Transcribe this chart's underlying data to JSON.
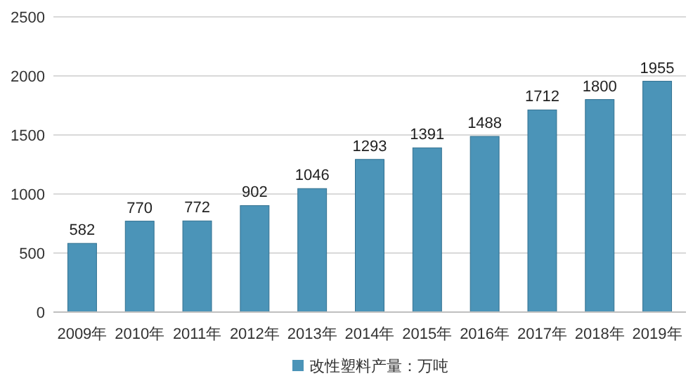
{
  "chart_data": {
    "type": "bar",
    "categories": [
      "2009年",
      "2010年",
      "2011年",
      "2012年",
      "2013年",
      "2014年",
      "2015年",
      "2016年",
      "2017年",
      "2018年",
      "2019年"
    ],
    "series": [
      {
        "name": "改性塑料产量：万吨",
        "color": "#4b94b8",
        "values": [
          582,
          770,
          772,
          902,
          1046,
          1293,
          1391,
          1488,
          1712,
          1800,
          1955
        ]
      }
    ],
    "ylim": [
      0,
      2500
    ],
    "yticks": [
      0,
      500,
      1000,
      1500,
      2000,
      2500
    ],
    "grid": "y",
    "legend": "bottom",
    "data_labels": true
  }
}
